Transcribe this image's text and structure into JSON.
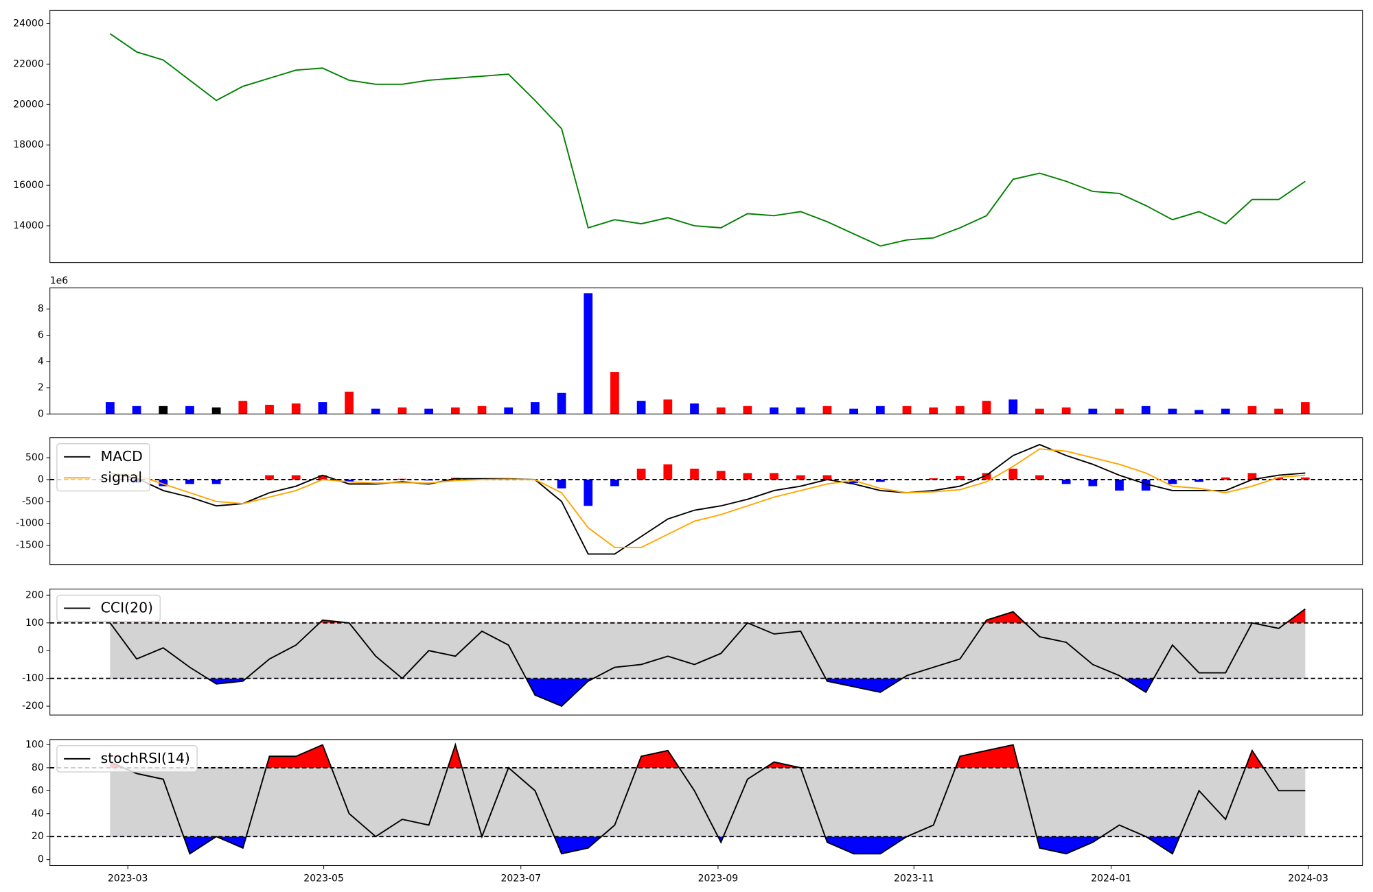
{
  "chart_data": [
    {
      "type": "line",
      "x": [
        2023.152,
        2023.1745,
        2023.197,
        2023.2195,
        2023.242,
        2023.2645,
        2023.287,
        2023.3095,
        2023.332,
        2023.3545,
        2023.377,
        2023.3995,
        2023.422,
        2023.4445,
        2023.467,
        2023.4895,
        2023.512,
        2023.5345,
        2023.557,
        2023.5795,
        2023.602,
        2023.6245,
        2023.647,
        2023.6695,
        2023.692,
        2023.7145,
        2023.737,
        2023.7595,
        2023.782,
        2023.8045,
        2023.827,
        2023.8495,
        2023.872,
        2023.8945,
        2023.917,
        2023.9395,
        2023.962,
        2023.9845,
        2024.007,
        2024.0295,
        2024.052,
        2024.0745,
        2024.097,
        2024.1195,
        2024.142,
        2024.1645
      ],
      "series": [
        {
          "color": "green",
          "values": [
            23500,
            22600,
            22200,
            21200,
            20200,
            20900,
            21300,
            21700,
            21800,
            21200,
            21000,
            21000,
            21200,
            21300,
            21400,
            21500,
            20200,
            18800,
            13900,
            14300,
            14100,
            14400,
            14000,
            13900,
            14600,
            14500,
            14700,
            14200,
            13600,
            13000,
            13300,
            13400,
            13900,
            14500,
            16300,
            16600,
            16200,
            15700,
            15600,
            15000,
            14300,
            14700,
            14100,
            15300,
            15300,
            16200
          ]
        }
      ],
      "xlim": [
        2023.101,
        2024.213
      ],
      "ylim": [
        12180,
        24650
      ],
      "yticks": [
        14000,
        16000,
        18000,
        20000,
        22000,
        24000
      ]
    },
    {
      "type": "bar",
      "x": [
        2023.152,
        2023.1745,
        2023.197,
        2023.2195,
        2023.242,
        2023.2645,
        2023.287,
        2023.3095,
        2023.332,
        2023.3545,
        2023.377,
        2023.3995,
        2023.422,
        2023.4445,
        2023.467,
        2023.4895,
        2023.512,
        2023.5345,
        2023.557,
        2023.5795,
        2023.602,
        2023.6245,
        2023.647,
        2023.6695,
        2023.692,
        2023.7145,
        2023.737,
        2023.7595,
        2023.782,
        2023.8045,
        2023.827,
        2023.8495,
        2023.872,
        2023.8945,
        2023.917,
        2023.9395,
        2023.962,
        2023.9845,
        2024.007,
        2024.0295,
        2024.052,
        2024.0745,
        2024.097,
        2024.1195,
        2024.142,
        2024.1645
      ],
      "values": [
        0.9,
        0.6,
        0.6,
        0.6,
        0.5,
        1.0,
        0.7,
        0.8,
        0.9,
        1.7,
        0.4,
        0.5,
        0.4,
        0.5,
        0.6,
        0.5,
        0.9,
        1.6,
        9.2,
        3.2,
        1.0,
        1.1,
        0.8,
        0.5,
        0.6,
        0.5,
        0.5,
        0.6,
        0.4,
        0.6,
        0.6,
        0.5,
        0.6,
        1.0,
        1.1,
        0.4,
        0.5,
        0.4,
        0.4,
        0.6,
        0.4,
        0.3,
        0.4,
        0.6,
        0.4,
        0.9
      ],
      "colors": [
        "blue",
        "blue",
        "black",
        "blue",
        "black",
        "red",
        "red",
        "red",
        "blue",
        "red",
        "blue",
        "red",
        "blue",
        "red",
        "red",
        "blue",
        "blue",
        "blue",
        "blue",
        "red",
        "blue",
        "red",
        "blue",
        "red",
        "red",
        "blue",
        "blue",
        "red",
        "blue",
        "blue",
        "red",
        "red",
        "red",
        "red",
        "blue",
        "red",
        "red",
        "blue",
        "red",
        "blue",
        "blue",
        "blue",
        "blue",
        "red",
        "red",
        "red"
      ],
      "offset_label": "1e6",
      "xlim": [
        2023.101,
        2024.213
      ],
      "ylim": [
        0,
        9.6
      ],
      "yticks": [
        0,
        2,
        4,
        6,
        8
      ]
    },
    {
      "type": "line",
      "x": [
        2023.152,
        2023.1745,
        2023.197,
        2023.2195,
        2023.242,
        2023.2645,
        2023.287,
        2023.3095,
        2023.332,
        2023.3545,
        2023.377,
        2023.3995,
        2023.422,
        2023.4445,
        2023.467,
        2023.4895,
        2023.512,
        2023.5345,
        2023.557,
        2023.5795,
        2023.602,
        2023.6245,
        2023.647,
        2023.6695,
        2023.692,
        2023.7145,
        2023.737,
        2023.7595,
        2023.782,
        2023.8045,
        2023.827,
        2023.8495,
        2023.872,
        2023.8945,
        2023.917,
        2023.9395,
        2023.962,
        2023.9845,
        2024.007,
        2024.0295,
        2024.052,
        2024.0745,
        2024.097,
        2024.1195,
        2024.142,
        2024.1645
      ],
      "series": [
        {
          "type": "bar",
          "positive_color": "red",
          "negative_color": "blue",
          "values": [
            0,
            -70,
            -150,
            -100,
            -100,
            0,
            100,
            100,
            100,
            -50,
            -20,
            20,
            -20,
            40,
            20,
            10,
            0,
            -200,
            -600,
            -150,
            250,
            350,
            250,
            200,
            150,
            150,
            100,
            100,
            -80,
            -50,
            0,
            30,
            80,
            150,
            250,
            100,
            -100,
            -150,
            -250,
            -250,
            -100,
            -50,
            50,
            150,
            50,
            50
          ]
        },
        {
          "name": "MACD",
          "color": "black",
          "values": [
            150,
            30,
            -250,
            -400,
            -600,
            -550,
            -300,
            -150,
            100,
            -100,
            -100,
            -50,
            -100,
            20,
            20,
            20,
            0,
            -500,
            -1700,
            -1700,
            -1300,
            -900,
            -700,
            -600,
            -450,
            -250,
            -150,
            0,
            -100,
            -250,
            -300,
            -250,
            -150,
            100,
            550,
            800,
            550,
            350,
            100,
            -100,
            -250,
            -250,
            -250,
            0,
            100,
            150
          ]
        },
        {
          "name": "signal",
          "color": "orange",
          "values": [
            150,
            100,
            -100,
            -300,
            -500,
            -550,
            -400,
            -250,
            0,
            -50,
            -80,
            -70,
            -80,
            -20,
            0,
            10,
            0,
            -300,
            -1100,
            -1550,
            -1550,
            -1250,
            -950,
            -800,
            -600,
            -400,
            -250,
            -100,
            -20,
            -200,
            -300,
            -280,
            -230,
            -50,
            300,
            700,
            650,
            500,
            350,
            150,
            -150,
            -200,
            -300,
            -150,
            50,
            100
          ]
        }
      ],
      "hlines": [
        0
      ],
      "legend": "upper left",
      "xlim": [
        2023.101,
        2024.213
      ],
      "ylim": [
        -1940,
        960
      ],
      "yticks": [
        -1500,
        -1000,
        -500,
        0,
        500
      ]
    },
    {
      "type": "line",
      "x": [
        2023.152,
        2023.1745,
        2023.197,
        2023.2195,
        2023.242,
        2023.2645,
        2023.287,
        2023.3095,
        2023.332,
        2023.3545,
        2023.377,
        2023.3995,
        2023.422,
        2023.4445,
        2023.467,
        2023.4895,
        2023.512,
        2023.5345,
        2023.557,
        2023.5795,
        2023.602,
        2023.6245,
        2023.647,
        2023.6695,
        2023.692,
        2023.7145,
        2023.737,
        2023.7595,
        2023.782,
        2023.8045,
        2023.827,
        2023.8495,
        2023.872,
        2023.8945,
        2023.917,
        2023.9395,
        2023.962,
        2023.9845,
        2024.007,
        2024.0295,
        2024.052,
        2024.0745,
        2024.097,
        2024.1195,
        2024.142,
        2024.1645
      ],
      "series": [
        {
          "name": "CCI(20)",
          "color": "black",
          "values": [
            100,
            -30,
            10,
            -60,
            -120,
            -110,
            -30,
            20,
            110,
            100,
            -20,
            -100,
            0,
            -20,
            70,
            20,
            -160,
            -200,
            -110,
            -60,
            -50,
            -20,
            -50,
            -10,
            100,
            60,
            70,
            -110,
            -130,
            -150,
            -90,
            -60,
            -30,
            110,
            140,
            50,
            30,
            -50,
            -90,
            -150,
            20,
            -80,
            -80,
            100,
            80,
            150
          ]
        }
      ],
      "hlines": [
        100,
        -100
      ],
      "band": [
        -100,
        100
      ],
      "band_color": "#d3d3d3",
      "fill_above": {
        "level": 100,
        "color": "red"
      },
      "fill_below": {
        "level": -100,
        "color": "blue"
      },
      "legend": "upper left",
      "xlim": [
        2023.101,
        2024.213
      ],
      "ylim": [
        -232,
        222
      ],
      "yticks": [
        -200,
        -100,
        0,
        100,
        200
      ]
    },
    {
      "type": "line",
      "x": [
        2023.152,
        2023.1745,
        2023.197,
        2023.2195,
        2023.242,
        2023.2645,
        2023.287,
        2023.3095,
        2023.332,
        2023.3545,
        2023.377,
        2023.3995,
        2023.422,
        2023.4445,
        2023.467,
        2023.4895,
        2023.512,
        2023.5345,
        2023.557,
        2023.5795,
        2023.602,
        2023.6245,
        2023.647,
        2023.6695,
        2023.692,
        2023.7145,
        2023.737,
        2023.7595,
        2023.782,
        2023.8045,
        2023.827,
        2023.8495,
        2023.872,
        2023.8945,
        2023.917,
        2023.9395,
        2023.962,
        2023.9845,
        2024.007,
        2024.0295,
        2024.052,
        2024.0745,
        2024.097,
        2024.1195,
        2024.142,
        2024.1645
      ],
      "series": [
        {
          "name": "stochRSI(14)",
          "color": "black",
          "values": [
            85,
            75,
            70,
            5,
            20,
            10,
            90,
            90,
            100,
            40,
            20,
            35,
            30,
            100,
            20,
            80,
            60,
            5,
            10,
            30,
            90,
            95,
            60,
            15,
            70,
            85,
            80,
            15,
            5,
            5,
            20,
            30,
            90,
            95,
            100,
            10,
            5,
            15,
            30,
            20,
            5,
            60,
            35,
            95,
            60,
            60
          ]
        }
      ],
      "hlines": [
        80,
        20
      ],
      "band": [
        20,
        80
      ],
      "band_color": "#d3d3d3",
      "fill_above": {
        "level": 80,
        "color": "red"
      },
      "fill_below": {
        "level": 20,
        "color": "blue"
      },
      "legend": "upper left",
      "xlim": [
        2023.101,
        2024.213
      ],
      "ylim": [
        -5.3,
        104.6
      ],
      "yticks": [
        0,
        20,
        40,
        60,
        80,
        100
      ],
      "xticks": [
        {
          "value": 2023.167,
          "label": "2023-03"
        },
        {
          "value": 2023.333,
          "label": "2023-05"
        },
        {
          "value": 2023.5,
          "label": "2023-07"
        },
        {
          "value": 2023.667,
          "label": "2023-09"
        },
        {
          "value": 2023.833,
          "label": "2023-11"
        },
        {
          "value": 2024.0,
          "label": "2024-01"
        },
        {
          "value": 2024.167,
          "label": "2024-03"
        }
      ]
    }
  ]
}
